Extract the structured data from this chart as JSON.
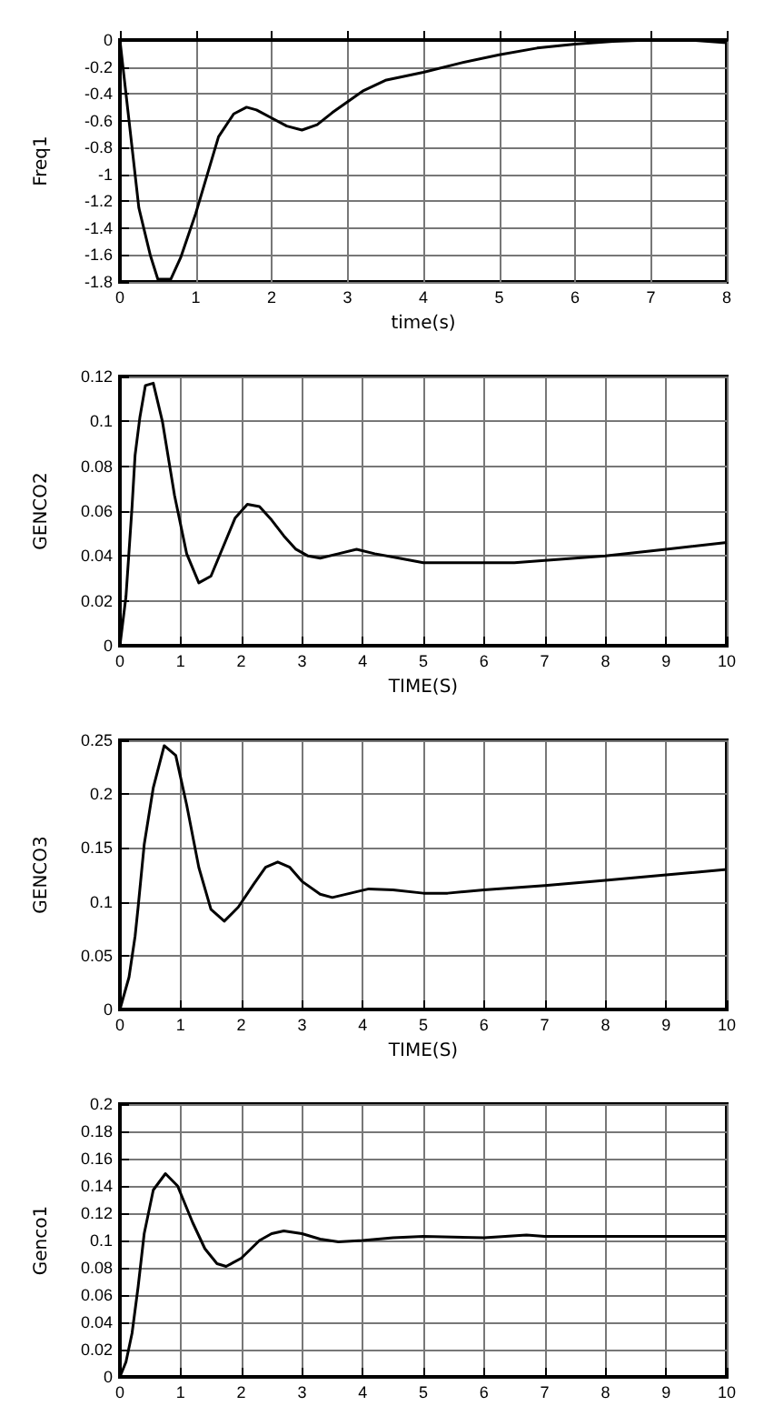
{
  "chart_data": [
    {
      "type": "line",
      "xlabel": "time(s)",
      "ylabel": "Freq1",
      "xlim": [
        0,
        8
      ],
      "ylim": [
        -1.8,
        0
      ],
      "xticks": [
        0,
        1,
        2,
        3,
        4,
        5,
        6,
        7,
        8
      ],
      "yticks": [
        -1.8,
        -1.6,
        -1.4,
        -1.2,
        -1,
        -0.8,
        -0.6,
        -0.4,
        -0.2,
        0
      ],
      "grid": true,
      "series": [
        {
          "color": "#000000",
          "x": [
            0,
            0.12,
            0.25,
            0.4,
            0.5,
            0.67,
            0.8,
            1,
            1.3,
            1.5,
            1.67,
            1.8,
            2,
            2.2,
            2.4,
            2.6,
            2.8,
            3,
            3.2,
            3.5,
            4,
            4.5,
            5,
            5.5,
            6,
            6.5,
            7,
            7.5,
            8
          ],
          "values": [
            0,
            -0.6,
            -1.25,
            -1.6,
            -1.78,
            -1.78,
            -1.62,
            -1.29,
            -0.72,
            -0.55,
            -0.5,
            -0.52,
            -0.58,
            -0.64,
            -0.67,
            -0.63,
            -0.54,
            -0.46,
            -0.38,
            -0.3,
            -0.24,
            -0.17,
            -0.11,
            -0.06,
            -0.03,
            -0.01,
            0,
            0,
            -0.02
          ]
        }
      ]
    },
    {
      "type": "line",
      "xlabel": "TIME(S)",
      "ylabel": "GENCO2",
      "xlim": [
        0,
        10
      ],
      "ylim": [
        0,
        0.12
      ],
      "xticks": [
        0,
        1,
        2,
        3,
        4,
        5,
        6,
        7,
        8,
        9,
        10
      ],
      "yticks": [
        0,
        0.02,
        0.04,
        0.06,
        0.08,
        0.1,
        0.12
      ],
      "grid": true,
      "series": [
        {
          "color": "#000000",
          "x": [
            0,
            0.1,
            0.2,
            0.25,
            0.33,
            0.42,
            0.55,
            0.7,
            0.9,
            1.1,
            1.3,
            1.5,
            1.7,
            1.9,
            2.1,
            2.3,
            2.5,
            2.7,
            2.9,
            3.1,
            3.3,
            3.6,
            3.9,
            4.2,
            4.6,
            5,
            6,
            6.5,
            7,
            8,
            9,
            10
          ],
          "values": [
            0,
            0.022,
            0.062,
            0.085,
            0.102,
            0.116,
            0.117,
            0.1,
            0.067,
            0.041,
            0.028,
            0.031,
            0.044,
            0.057,
            0.063,
            0.062,
            0.056,
            0.049,
            0.043,
            0.04,
            0.039,
            0.041,
            0.043,
            0.041,
            0.039,
            0.037,
            0.037,
            0.037,
            0.038,
            0.04,
            0.043,
            0.046
          ]
        }
      ]
    },
    {
      "type": "line",
      "xlabel": "TIME(S)",
      "ylabel": "GENCO3",
      "xlim": [
        0,
        10
      ],
      "ylim": [
        0,
        0.25
      ],
      "xticks": [
        0,
        1,
        2,
        3,
        4,
        5,
        6,
        7,
        8,
        9,
        10
      ],
      "yticks": [
        0,
        0.05,
        0.1,
        0.15,
        0.2,
        0.25
      ],
      "grid": true,
      "series": [
        {
          "color": "#000000",
          "x": [
            0,
            0.15,
            0.25,
            0.3,
            0.4,
            0.55,
            0.73,
            0.92,
            1.1,
            1.3,
            1.5,
            1.72,
            1.95,
            2.2,
            2.4,
            2.6,
            2.8,
            3,
            3.3,
            3.5,
            3.8,
            4.1,
            4.5,
            5,
            5.4,
            6,
            7,
            8,
            9,
            10
          ],
          "values": [
            0,
            0.03,
            0.068,
            0.095,
            0.153,
            0.206,
            0.245,
            0.236,
            0.19,
            0.132,
            0.093,
            0.082,
            0.095,
            0.116,
            0.132,
            0.137,
            0.132,
            0.119,
            0.107,
            0.104,
            0.108,
            0.112,
            0.111,
            0.108,
            0.108,
            0.111,
            0.115,
            0.12,
            0.125,
            0.13
          ]
        }
      ]
    },
    {
      "type": "line",
      "ylabel": "Genco1",
      "xlim": [
        0,
        10
      ],
      "ylim": [
        0,
        0.2
      ],
      "xticks": [
        0,
        1,
        2,
        3,
        4,
        5,
        6,
        7,
        8,
        9,
        10
      ],
      "yticks": [
        0,
        0.02,
        0.04,
        0.06,
        0.08,
        0.1,
        0.12,
        0.14,
        0.16,
        0.18,
        0.2
      ],
      "grid": true,
      "series": [
        {
          "color": "#000000",
          "x": [
            0,
            0.1,
            0.2,
            0.3,
            0.4,
            0.55,
            0.75,
            0.95,
            1.2,
            1.4,
            1.6,
            1.75,
            2,
            2.3,
            2.5,
            2.7,
            3,
            3.3,
            3.6,
            4,
            4.5,
            5,
            6,
            6.7,
            7,
            8,
            10
          ],
          "values": [
            0,
            0.011,
            0.032,
            0.066,
            0.105,
            0.137,
            0.149,
            0.14,
            0.113,
            0.094,
            0.083,
            0.081,
            0.087,
            0.1,
            0.105,
            0.107,
            0.105,
            0.101,
            0.099,
            0.1,
            0.102,
            0.103,
            0.102,
            0.104,
            0.103,
            0.103,
            0.103
          ]
        }
      ]
    }
  ]
}
